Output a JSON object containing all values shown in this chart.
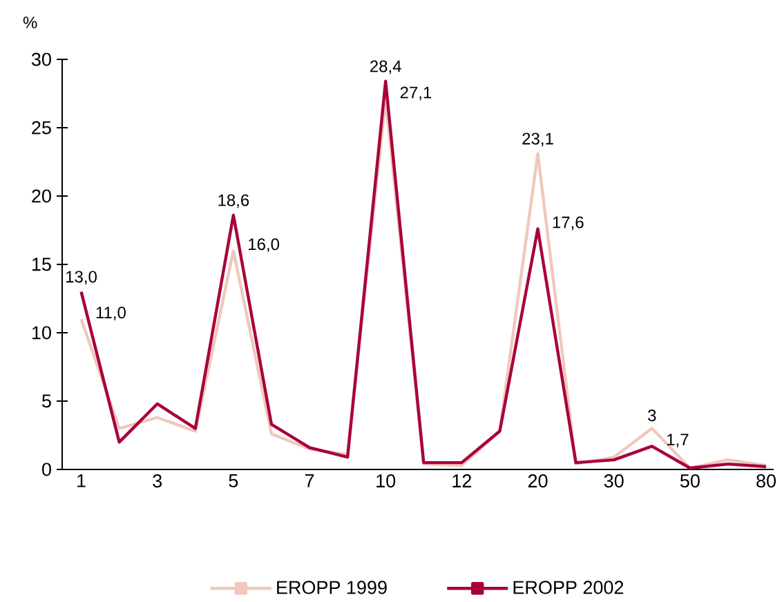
{
  "chart_data": {
    "type": "line",
    "ylabel": "%",
    "categories": [
      "1",
      null,
      "3",
      null,
      "5",
      null,
      "7",
      null,
      "10",
      null,
      "12",
      null,
      "20",
      null,
      "30",
      null,
      "50",
      null,
      "80"
    ],
    "series": [
      {
        "name": "EROPP 1999",
        "color": "#f0c8bc",
        "values": [
          11.0,
          3.0,
          3.8,
          2.8,
          16.0,
          2.6,
          1.5,
          1.1,
          27.1,
          0.4,
          0.3,
          2.8,
          23.1,
          0.4,
          0.9,
          3.0,
          0.1,
          0.7,
          0.3
        ],
        "value_labels": [
          "11,0",
          null,
          null,
          null,
          "16,0",
          null,
          null,
          null,
          "27,1",
          null,
          null,
          null,
          "23,1",
          null,
          null,
          "3",
          null,
          null,
          null
        ]
      },
      {
        "name": "EROPP 2002",
        "color": "#a8003a",
        "values": [
          13.0,
          2.0,
          4.8,
          3.0,
          18.6,
          3.3,
          1.6,
          0.9,
          28.4,
          0.5,
          0.5,
          2.8,
          17.6,
          0.5,
          0.7,
          1.7,
          0.1,
          0.4,
          0.2
        ],
        "value_labels": [
          "13,0",
          null,
          null,
          null,
          "18,6",
          null,
          null,
          null,
          "28,4",
          null,
          null,
          null,
          "17,6",
          null,
          null,
          "1,7",
          null,
          null,
          null
        ]
      }
    ],
    "ylim": [
      0,
      30
    ],
    "yticks": [
      0,
      5,
      10,
      15,
      20,
      25,
      30
    ],
    "legend": "bottom"
  }
}
